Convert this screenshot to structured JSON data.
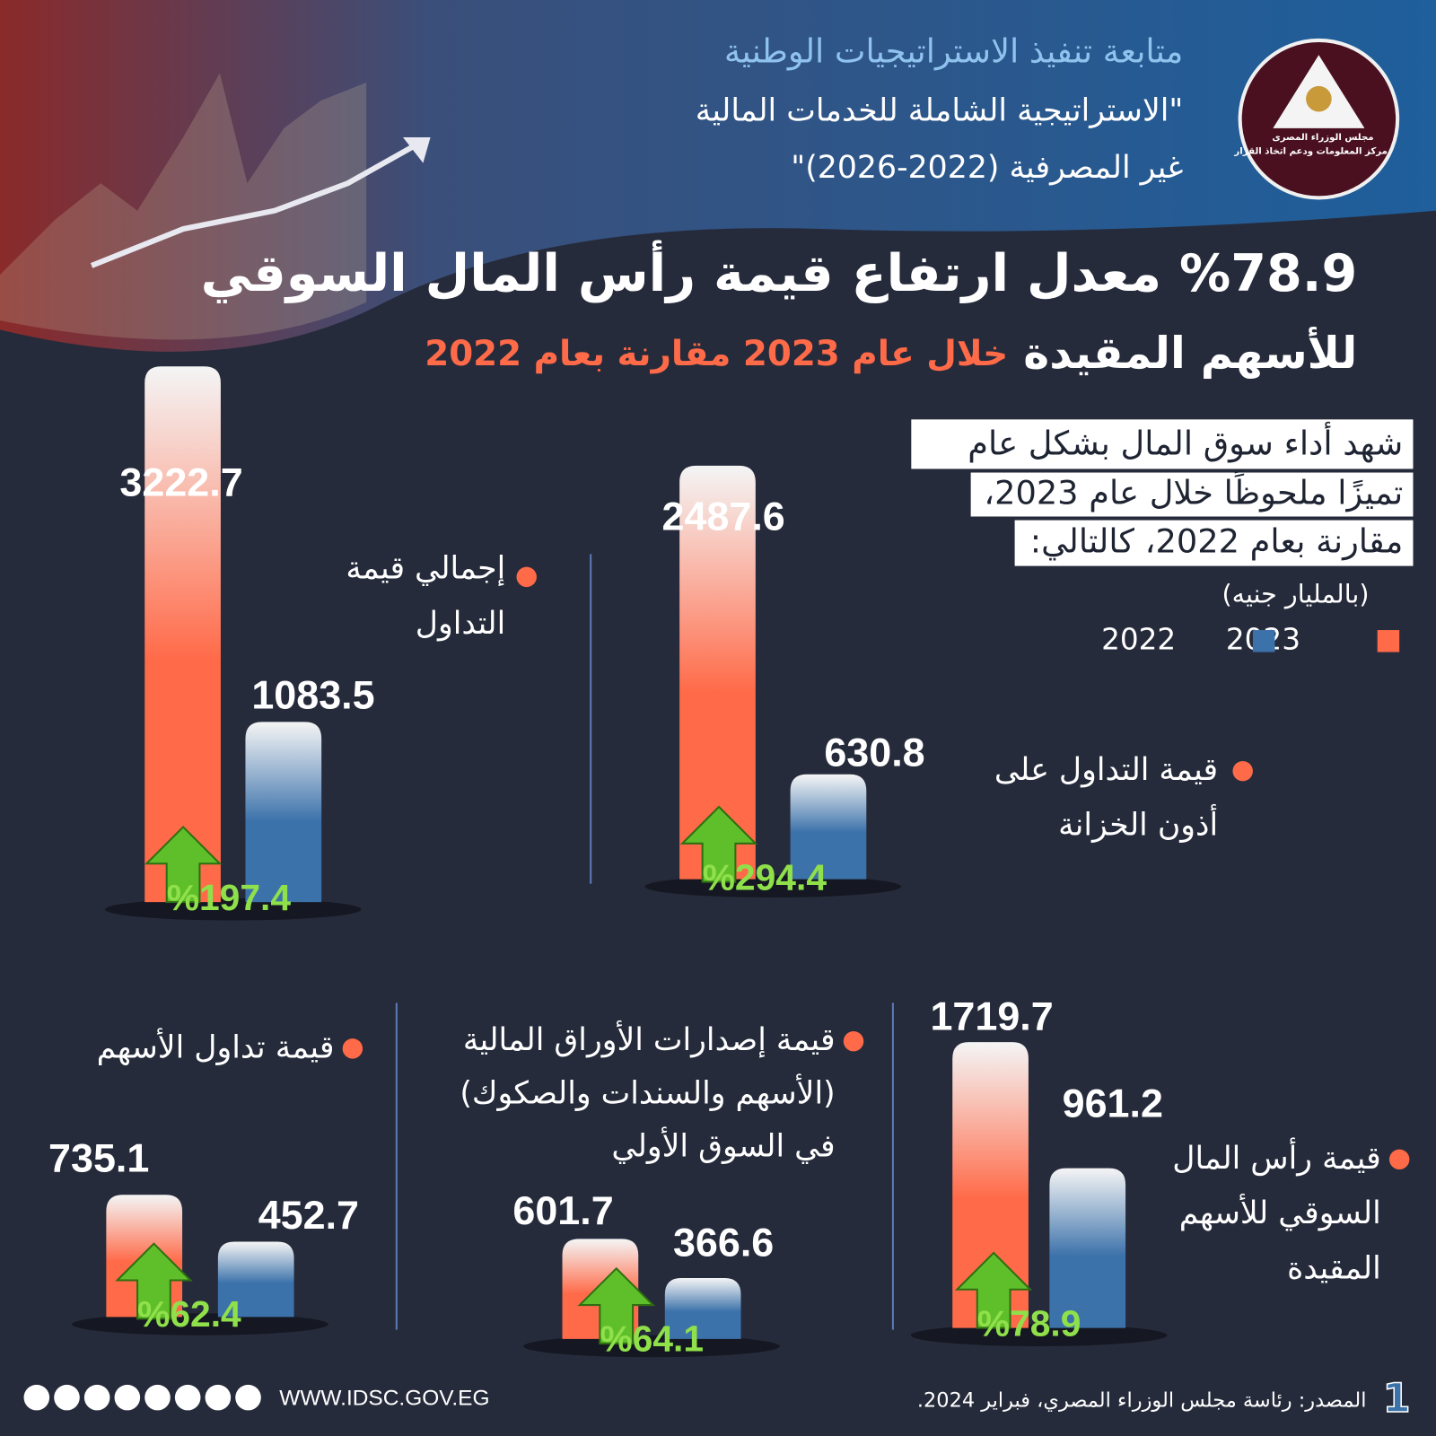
{
  "header": {
    "lines": [
      "متابعة تنفيذ الاستراتيجيات الوطنية",
      "\"الاستراتيجية الشاملة للخدمات المالية",
      "غير المصرفية (2022-2026)\""
    ]
  },
  "logo": {
    "lines": [
      "مجلس الوزراء المصرى",
      "مركز المعلومات ودعم اتخاذ القرار"
    ]
  },
  "title": {
    "line1": "%78.9 معدل ارتفاع قيمة رأس المال السوقي",
    "line2_main": "للأسهم المقيدة",
    "line2_accent": "خلال عام 2023 مقارنة بعام 2022"
  },
  "intro": [
    "شهد أداء سوق المال بشكل عام",
    "تميزًا ملحوظًا خلال عام 2023،",
    "مقارنة بعام 2022، كالتالي:"
  ],
  "unit": "(بالمليار جنيه)",
  "legend": [
    {
      "name": "2023",
      "color": "#ff6a48"
    },
    {
      "name": "2022",
      "color": "#3c72aa"
    }
  ],
  "chart_data": [
    {
      "type": "bar",
      "label": [
        "إجمالي قيمة",
        "التداول"
      ],
      "values": [
        3222.7,
        1083.5
      ],
      "growth": {
        "value": 197.4,
        "label": "%197.4"
      }
    },
    {
      "type": "bar",
      "label": [
        "قيمة التداول على",
        "أذون الخزانة"
      ],
      "values": [
        2487.6,
        630.8
      ],
      "growth": {
        "value": 294.4,
        "label": "%294.4"
      }
    },
    {
      "type": "bar",
      "label": [
        "قيمة رأس المال",
        "السوقي للأسهم",
        "المقيدة"
      ],
      "values": [
        1719.7,
        961.2
      ],
      "growth": {
        "value": 78.9,
        "label": "%78.9"
      }
    },
    {
      "type": "bar",
      "label": [
        "قيمة إصدارات الأوراق المالية",
        "(الأسهم والسندات والصكوك)",
        "في السوق الأولي"
      ],
      "values": [
        601.7,
        366.6
      ],
      "growth": {
        "value": 64.1,
        "label": "%64.1"
      }
    },
    {
      "type": "bar",
      "label": [
        "قيمة تداول الأسهم"
      ],
      "values": [
        735.1,
        452.7
      ],
      "growth": {
        "value": 62.4,
        "label": "%62.4"
      }
    }
  ],
  "footer": {
    "website": "WWW.IDSC.GOV.EG",
    "source": "المصدر: رئاسة مجلس الوزراء المصري، فبراير 2024.",
    "page": "1"
  }
}
